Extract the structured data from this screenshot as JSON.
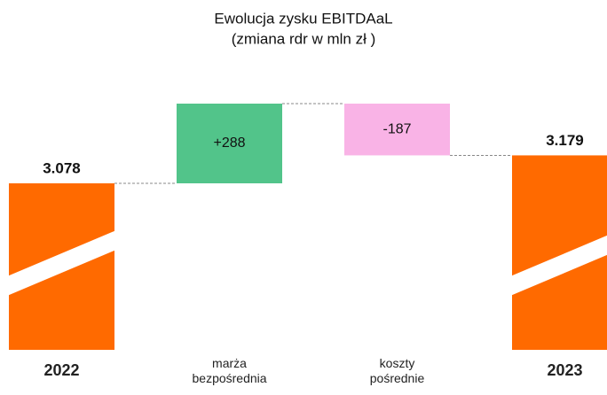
{
  "chart_data": {
    "type": "waterfall",
    "title": "Ewolucja zysku EBITDAaL",
    "subtitle": "(zmiana rdr w mln zł )",
    "categories": [
      "2022",
      "marża bezpośrednia",
      "koszty pośrednie",
      "2023"
    ],
    "values": [
      3078,
      288,
      -187,
      3179
    ],
    "value_labels": [
      "3.078",
      "+288",
      "-187",
      "3.179"
    ],
    "measure": [
      "total",
      "relative",
      "relative",
      "total"
    ],
    "colors": [
      "#ff6a00",
      "#52c48a",
      "#f9b3e6",
      "#ff6a00"
    ],
    "axis_break": true
  }
}
